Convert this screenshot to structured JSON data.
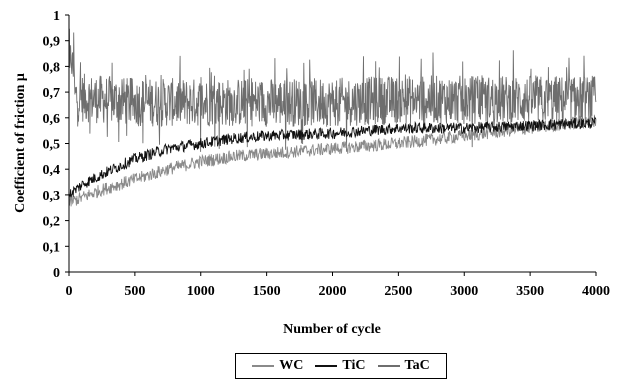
{
  "chart_data": {
    "type": "line",
    "xlabel": "Number of cycle",
    "ylabel": "Coefficient of friction  μ",
    "xlim": [
      0,
      4000
    ],
    "ylim": [
      0,
      1
    ],
    "x_ticks": [
      "0",
      "500",
      "1000",
      "1500",
      "2000",
      "2500",
      "3000",
      "3500",
      "4000"
    ],
    "y_ticks": [
      "0",
      "0,1",
      "0,2",
      "0,3",
      "0,4",
      "0,5",
      "0,6",
      "0,7",
      "0,8",
      "0,9",
      "1"
    ],
    "grid": false,
    "legend_position": "bottom",
    "series": [
      {
        "name": "WC",
        "color": "#8a8a8a",
        "x": [
          0,
          100,
          250,
          500,
          750,
          1000,
          1250,
          1500,
          2000,
          2500,
          3000,
          3500,
          4000
        ],
        "values": [
          0.27,
          0.29,
          0.32,
          0.36,
          0.4,
          0.43,
          0.45,
          0.46,
          0.48,
          0.5,
          0.53,
          0.56,
          0.59
        ]
      },
      {
        "name": "TiC",
        "color": "#111111",
        "x": [
          0,
          100,
          250,
          500,
          750,
          1000,
          1250,
          1500,
          2000,
          2500,
          3000,
          3500,
          4000
        ],
        "values": [
          0.3,
          0.34,
          0.38,
          0.44,
          0.48,
          0.5,
          0.52,
          0.53,
          0.54,
          0.56,
          0.56,
          0.57,
          0.58
        ]
      },
      {
        "name": "TaC",
        "color": "#6e6e6e",
        "x": [
          0,
          50,
          500,
          1000,
          1500,
          2000,
          2500,
          3000,
          3500,
          4000
        ],
        "values": [
          0.72,
          0.68,
          0.66,
          0.66,
          0.66,
          0.66,
          0.67,
          0.67,
          0.67,
          0.67
        ]
      }
    ]
  }
}
